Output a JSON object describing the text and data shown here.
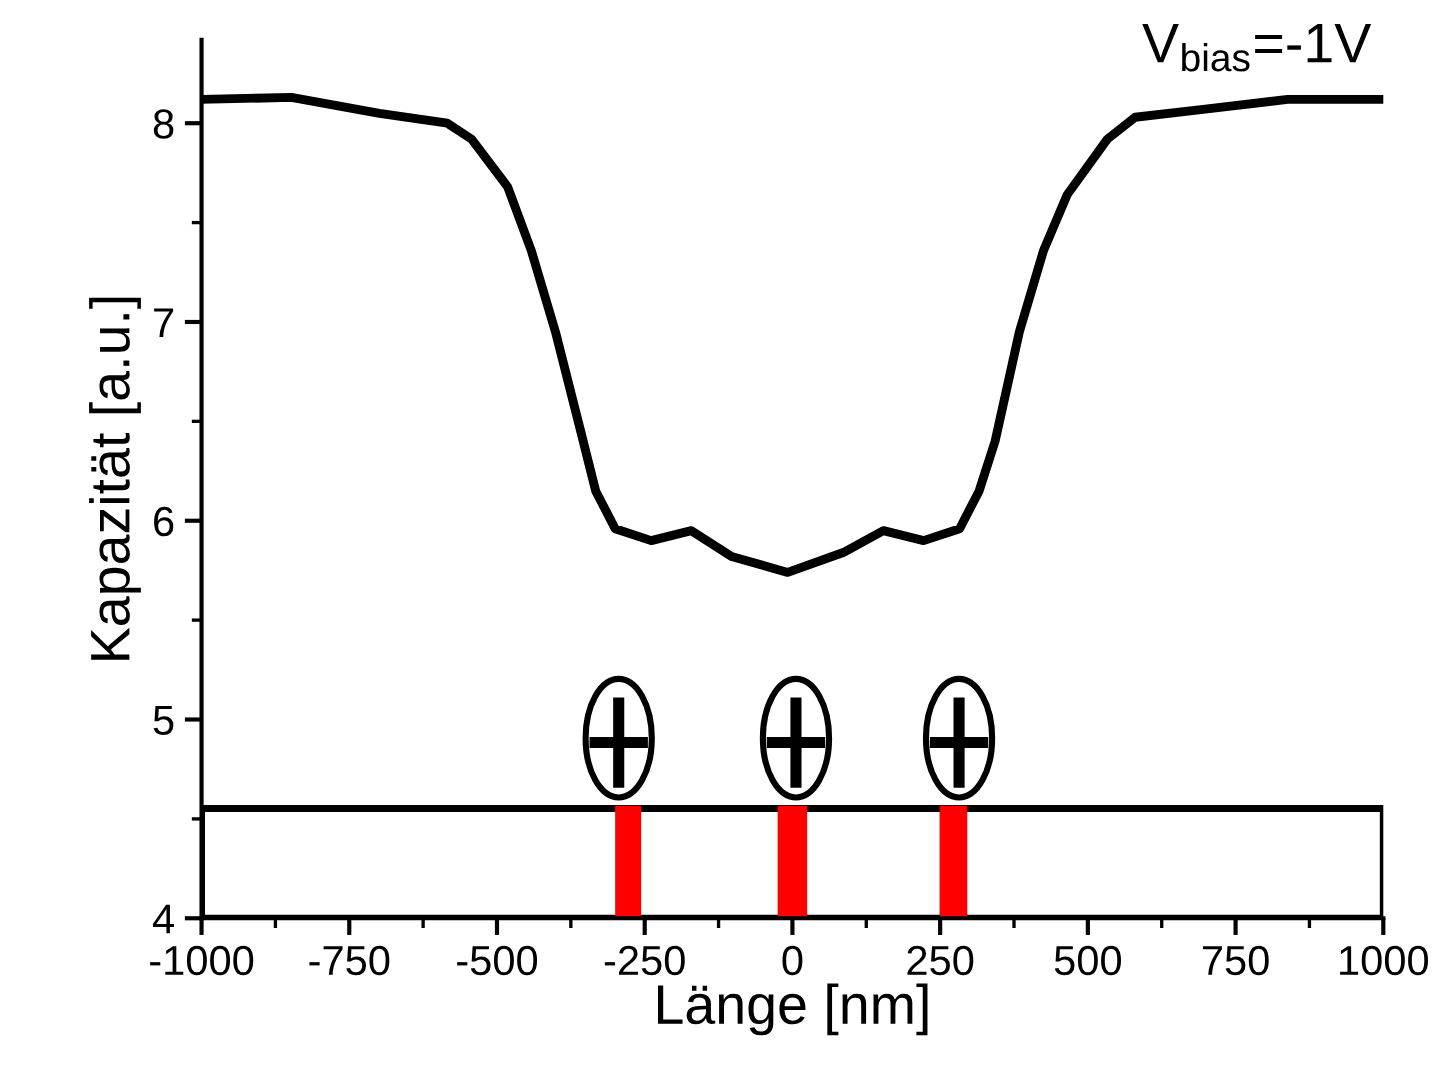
{
  "chart_data": {
    "type": "line",
    "xlabel": "Länge [nm]",
    "ylabel": "Kapazität [a.u.]",
    "annotations": [
      "V$_{bias}$=-1V"
    ],
    "x": [
      -1000,
      -848,
      -699,
      -584,
      -543,
      -482,
      -442,
      -401,
      -360,
      -333,
      -300,
      -239,
      -171,
      -103,
      -8,
      86,
      154,
      222,
      283,
      316,
      343,
      384,
      425,
      465,
      533,
      580,
      695,
      838,
      1000
    ],
    "series": [
      {
        "color": "#000000",
        "values": [
          8.12,
          8.13,
          8.05,
          8.0,
          7.92,
          7.68,
          7.36,
          6.95,
          6.47,
          6.15,
          5.96,
          5.9,
          5.95,
          5.82,
          5.74,
          5.84,
          5.95,
          5.9,
          5.96,
          6.15,
          6.4,
          6.95,
          7.36,
          7.64,
          7.92,
          8.03,
          8.07,
          8.12,
          8.12
        ]
      }
    ],
    "xlim": [
      -1000,
      1000
    ],
    "ylim": [
      4,
      8.42
    ],
    "xticks": [
      -1000,
      -750,
      -500,
      -250,
      0,
      250,
      500,
      750,
      1000,
      {
        "value": -875,
        "label": null
      },
      {
        "value": -625,
        "label": null
      },
      {
        "value": -375,
        "label": null
      },
      {
        "value": -125,
        "label": null
      },
      {
        "value": 125,
        "label": null
      },
      {
        "value": 375,
        "label": null
      },
      {
        "value": 625,
        "label": null
      },
      {
        "value": 875,
        "label": null
      }
    ],
    "yticks": [
      4,
      5,
      6,
      7,
      8,
      {
        "value": 4.5,
        "label": null
      },
      {
        "value": 5.5,
        "label": null
      },
      {
        "value": 6.5,
        "label": null
      },
      {
        "value": 7.5,
        "label": null
      }
    ],
    "bands": [
      {
        "axis": "x",
        "from": -300,
        "to": -256,
        "color": "#ff0000"
      },
      {
        "axis": "x",
        "from": -25,
        "to": 25,
        "color": "#ff0000"
      },
      {
        "axis": "x",
        "from": 249,
        "to": 296,
        "color": "#ff0000"
      }
    ],
    "grid": false,
    "legend": false,
    "marker": "none",
    "line_style": "solid"
  }
}
